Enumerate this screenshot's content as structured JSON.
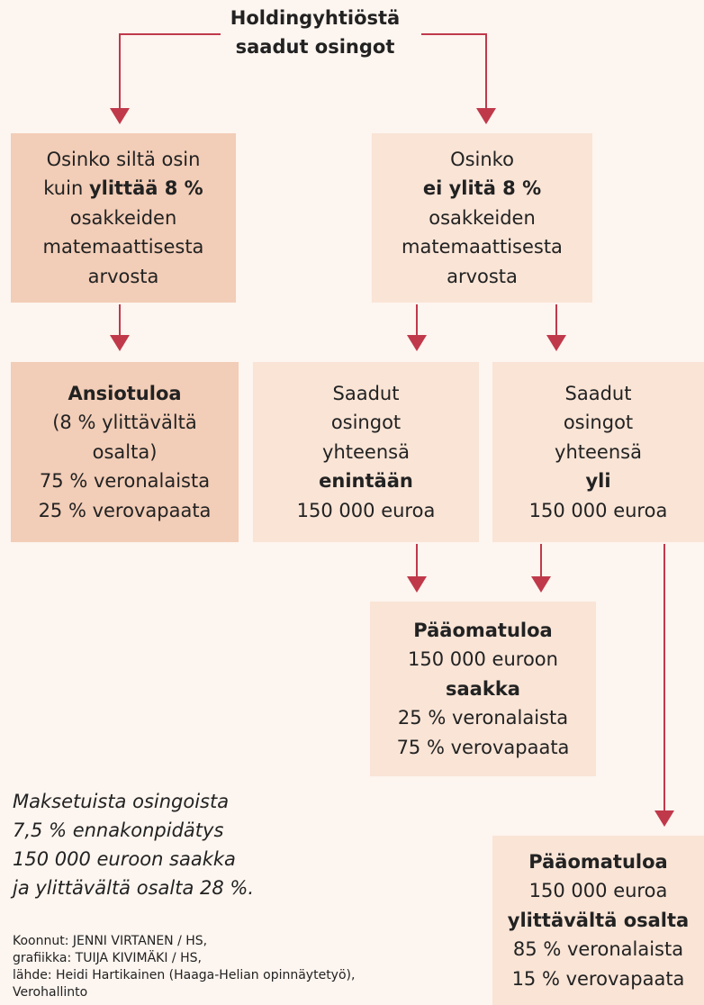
{
  "title": [
    "Holdingyhtiöstä",
    "saadut osingot"
  ],
  "nodes": [
    {
      "tone": "dark",
      "lines": [
        [
          {
            "text": "Osinko siltä osin"
          }
        ],
        [
          {
            "text": "kuin "
          },
          {
            "text": "ylittää 8 %",
            "bold": true
          }
        ],
        [
          {
            "text": "osakkeiden"
          }
        ],
        [
          {
            "text": "matemaattisesta"
          }
        ],
        [
          {
            "text": "arvosta"
          }
        ]
      ]
    },
    {
      "tone": "light",
      "lines": [
        [
          {
            "text": "Osinko"
          }
        ],
        [
          {
            "text": "ei ylitä 8 %",
            "bold": true
          }
        ],
        [
          {
            "text": "osakkeiden"
          }
        ],
        [
          {
            "text": "matemaattisesta"
          }
        ],
        [
          {
            "text": "arvosta"
          }
        ]
      ]
    },
    {
      "tone": "dark",
      "lines": [
        [
          {
            "text": "Ansiotuloa",
            "bold": true
          }
        ],
        [
          {
            "text": "(8 % ylittävältä"
          }
        ],
        [
          {
            "text": "osalta)"
          }
        ],
        [
          {
            "text": "75 % veronalaista"
          }
        ],
        [
          {
            "text": "25 % verovapaata"
          }
        ]
      ]
    },
    {
      "tone": "light",
      "lines": [
        [
          {
            "text": "Saadut"
          }
        ],
        [
          {
            "text": "osingot"
          }
        ],
        [
          {
            "text": "yhteensä"
          }
        ],
        [
          {
            "text": "enintään",
            "bold": true
          }
        ],
        [
          {
            "text": "150 000 euroa"
          }
        ]
      ]
    },
    {
      "tone": "light",
      "lines": [
        [
          {
            "text": "Saadut"
          }
        ],
        [
          {
            "text": "osingot"
          }
        ],
        [
          {
            "text": "yhteensä"
          }
        ],
        [
          {
            "text": "yli",
            "bold": true
          }
        ],
        [
          {
            "text": "150 000 euroa"
          }
        ]
      ]
    },
    {
      "tone": "light",
      "lines": [
        [
          {
            "text": "Pääomatuloa",
            "bold": true
          }
        ],
        [
          {
            "text": "150 000 euroon"
          }
        ],
        [
          {
            "text": "saakka",
            "bold": true
          }
        ],
        [
          {
            "text": "25 % veronalaista"
          }
        ],
        [
          {
            "text": "75 % verovapaata"
          }
        ]
      ]
    },
    {
      "tone": "light",
      "lines": [
        [
          {
            "text": "Pääomatuloa",
            "bold": true
          }
        ],
        [
          {
            "text": "150 000 euroa"
          }
        ],
        [
          {
            "text": "ylittävältä osalta",
            "bold": true
          }
        ],
        [
          {
            "text": "85 % veronalaista"
          }
        ],
        [
          {
            "text": "15 % verovapaata"
          }
        ]
      ]
    }
  ],
  "note": [
    "Maksetuista osingoista",
    "7,5 % ennakonpidätys",
    "150 000 euroon saakka",
    "ja ylittävältä osalta 28 %."
  ],
  "credits": [
    "Koonnut: JENNI VIRTANEN / HS,",
    "grafiikka: TUIJA KIVIMÄKI / HS,",
    "lähde: Heidi Hartikainen (Haaga-Helian opinnäytetyö),",
    "Verohallinto"
  ]
}
